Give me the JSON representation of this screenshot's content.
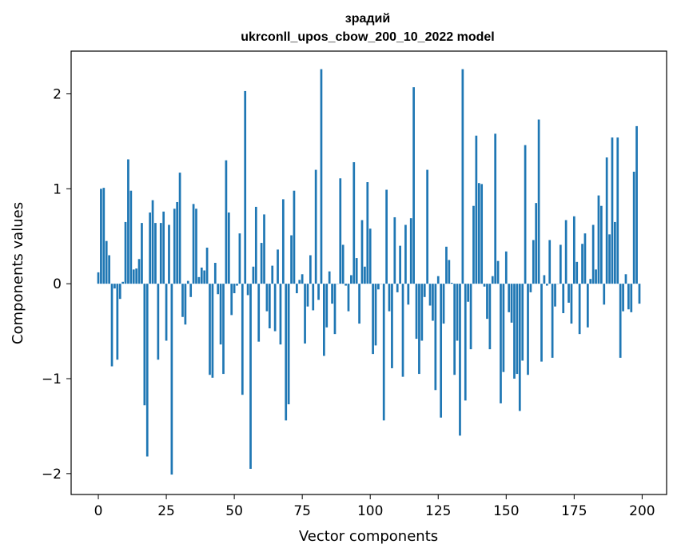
{
  "chart_data": {
    "type": "bar",
    "title": "зрадий",
    "subtitle": "ukrconll_upos_cbow_200_10_2022 model",
    "xlabel": "Vector components",
    "ylabel": "Components values",
    "xlim": [
      -10,
      209
    ],
    "ylim": [
      -2.22,
      2.45
    ],
    "x_ticks": [
      0,
      25,
      50,
      75,
      100,
      125,
      150,
      175,
      200
    ],
    "y_ticks": [
      -2,
      -1,
      0,
      1,
      2
    ],
    "y_tick_labels": [
      "−2",
      "−1",
      "0",
      "1",
      "2"
    ],
    "grid": false,
    "bar_color": "#1f77b4",
    "series": [
      {
        "values": [
          0.12,
          1.0,
          1.01,
          0.45,
          0.3,
          -0.87,
          -0.05,
          -0.8,
          -0.16,
          0.02,
          0.65,
          1.31,
          0.98,
          0.15,
          0.16,
          0.26,
          0.64,
          -1.28,
          -1.82,
          0.75,
          0.88,
          0.64,
          -0.8,
          0.64,
          0.76,
          -0.6,
          0.62,
          -2.01,
          0.79,
          0.86,
          1.17,
          -0.35,
          -0.43,
          0.03,
          -0.14,
          0.84,
          0.79,
          0.07,
          0.17,
          0.14,
          0.38,
          -0.96,
          -0.99,
          0.22,
          -0.11,
          -0.64,
          -0.95,
          1.3,
          0.75,
          -0.33,
          -0.1,
          -0.02,
          0.53,
          -1.17,
          2.03,
          -0.12,
          -1.95,
          0.18,
          0.81,
          -0.61,
          0.43,
          0.73,
          -0.29,
          -0.47,
          0.19,
          -0.5,
          0.36,
          -0.64,
          0.89,
          -1.44,
          -1.27,
          0.51,
          0.98,
          -0.1,
          0.04,
          0.1,
          -0.63,
          -0.24,
          0.3,
          -0.28,
          1.2,
          -0.17,
          2.26,
          -0.76,
          -0.46,
          0.13,
          -0.21,
          -0.53,
          0.0,
          1.11,
          0.41,
          -0.02,
          -0.29,
          0.09,
          1.28,
          0.27,
          -0.42,
          0.67,
          0.18,
          1.07,
          0.58,
          -0.74,
          -0.65,
          -0.06,
          0.0,
          -1.44,
          0.99,
          -0.29,
          -0.89,
          0.7,
          -0.09,
          0.4,
          -0.98,
          0.62,
          -0.22,
          0.69,
          2.07,
          -0.58,
          -0.95,
          -0.6,
          -0.14,
          1.2,
          -0.23,
          -0.39,
          -1.12,
          0.08,
          -1.41,
          -0.42,
          0.39,
          0.25,
          0.01,
          -0.96,
          -0.6,
          -1.6,
          2.26,
          -1.23,
          -0.19,
          -0.69,
          0.82,
          1.56,
          1.06,
          1.05,
          -0.03,
          -0.37,
          -0.69,
          0.08,
          1.58,
          0.24,
          -1.26,
          -0.93,
          0.34,
          -0.3,
          -0.41,
          -1.0,
          -0.95,
          -1.34,
          -0.81,
          1.46,
          -0.96,
          -0.09,
          0.46,
          0.85,
          1.73,
          -0.82,
          0.09,
          -0.02,
          0.46,
          -0.78,
          -0.24,
          0.0,
          0.41,
          -0.31,
          0.67,
          -0.2,
          -0.42,
          0.71,
          0.23,
          -0.53,
          0.42,
          0.53,
          -0.46,
          0.05,
          0.62,
          0.15,
          0.93,
          0.82,
          -0.22,
          1.33,
          0.52,
          1.54,
          0.65,
          1.54,
          -0.78,
          -0.29,
          0.1,
          -0.27,
          -0.3,
          1.18,
          1.66,
          -0.21
        ]
      }
    ]
  }
}
